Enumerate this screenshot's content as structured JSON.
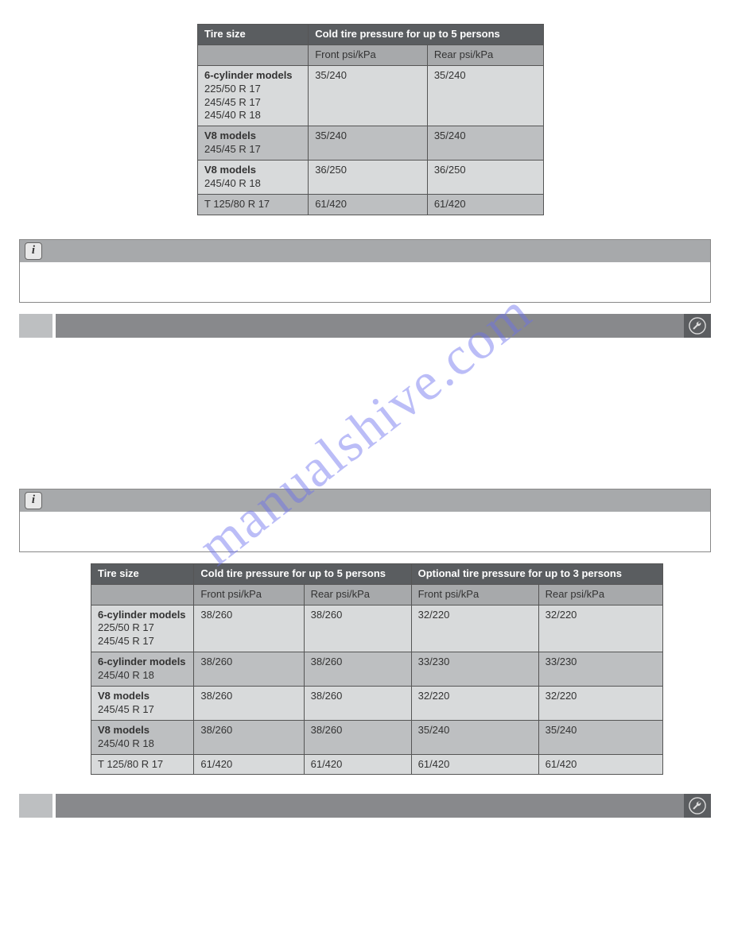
{
  "watermark": "manualshive.com",
  "table1": {
    "header": {
      "col1": "Tire size",
      "col2": "Cold tire pressure for up to 5 persons"
    },
    "subheader": {
      "front": "Front\npsi/kPa",
      "rear": "Rear\npsi/kPa"
    },
    "rows": [
      {
        "title": "6-cylinder models",
        "sizes": "225/50 R 17\n245/45 R 17\n245/40 R 18",
        "front": "35/240",
        "rear": "35/240",
        "shade": "a"
      },
      {
        "title": "V8 models",
        "sizes": "245/45 R 17",
        "front": "35/240",
        "rear": "35/240",
        "shade": "b"
      },
      {
        "title": "V8 models",
        "sizes": "245/40 R 18",
        "front": "36/250",
        "rear": "36/250",
        "shade": "a"
      },
      {
        "title": "",
        "sizes": "T 125/80 R 17",
        "front": "61/420",
        "rear": "61/420",
        "shade": "b"
      }
    ]
  },
  "table2": {
    "header": {
      "col1": "Tire size",
      "col2": "Cold tire pressure for up to 5 persons",
      "col3": "Optional tire pressure for up to 3 persons"
    },
    "subheader": {
      "front": "Front\npsi/kPa",
      "rear": "Rear\npsi/kPa"
    },
    "rows": [
      {
        "title": "6-cylinder models",
        "sizes": "225/50 R 17\n245/45 R 17",
        "c1": "38/260",
        "c2": "38/260",
        "c3": "32/220",
        "c4": "32/220",
        "shade": "a"
      },
      {
        "title": "6-cylinder models",
        "sizes": "245/40 R 18",
        "c1": "38/260",
        "c2": "38/260",
        "c3": "33/230",
        "c4": "33/230",
        "shade": "b"
      },
      {
        "title": "V8 models",
        "sizes": "245/45 R 17",
        "c1": "38/260",
        "c2": "38/260",
        "c3": "32/220",
        "c4": "32/220",
        "shade": "a"
      },
      {
        "title": "V8 models",
        "sizes": "245/40 R 18",
        "c1": "38/260",
        "c2": "38/260",
        "c3": "35/240",
        "c4": "35/240",
        "shade": "b"
      },
      {
        "title": "",
        "sizes": "T 125/80 R 17",
        "c1": "61/420",
        "c2": "61/420",
        "c3": "61/420",
        "c4": "61/420",
        "shade": "a"
      }
    ]
  },
  "colors": {
    "header_bg": "#5a5d60",
    "sub_bg": "#a7a9ab",
    "row_a": "#d8dadb",
    "row_b": "#bdbfc1",
    "bar_main": "#88898c"
  }
}
